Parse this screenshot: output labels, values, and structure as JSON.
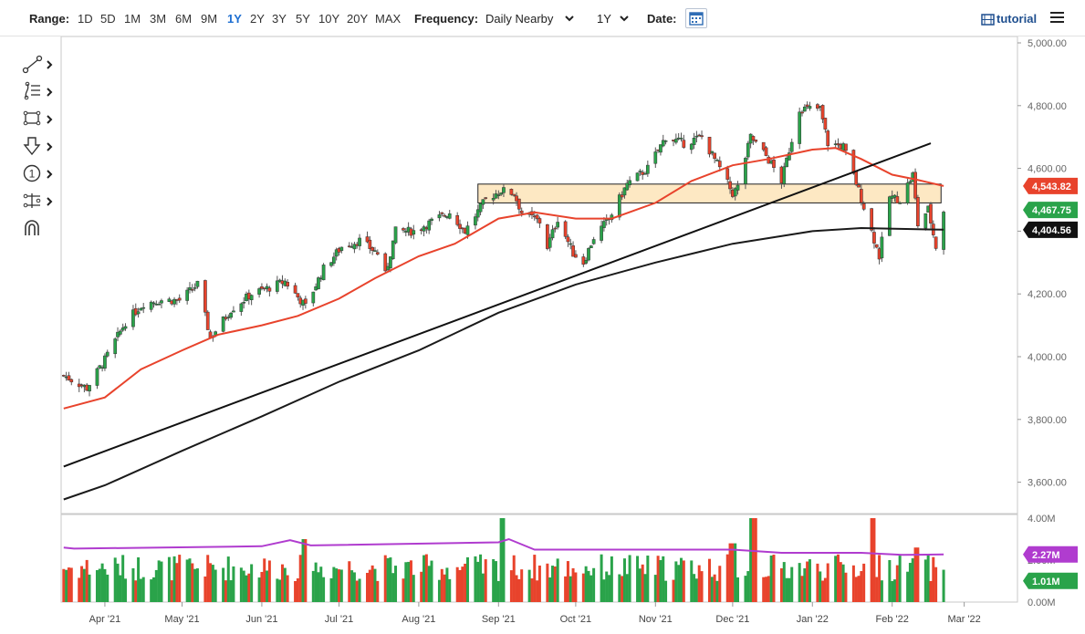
{
  "toolbar": {
    "range_label": "Range:",
    "ranges": [
      "1D",
      "5D",
      "1M",
      "3M",
      "6M",
      "9M",
      "1Y",
      "2Y",
      "3Y",
      "5Y",
      "10Y",
      "20Y",
      "MAX"
    ],
    "active_range": "1Y",
    "frequency_label": "Frequency:",
    "frequency_value": "Daily Nearby",
    "period_value": "1Y",
    "date_label": "Date:",
    "tutorial_label": "tutorial"
  },
  "tools": [
    {
      "icon": "trendline-icon"
    },
    {
      "icon": "fibonacci-icon"
    },
    {
      "icon": "rectangle-shape-icon"
    },
    {
      "icon": "arrow-down-icon"
    },
    {
      "icon": "numbered-marker-icon",
      "text": "1"
    },
    {
      "icon": "measure-icon"
    },
    {
      "icon": "magnet-icon"
    }
  ],
  "chart_data": [
    {
      "type": "candlestick",
      "panel": "price",
      "ylim": [
        3500,
        5000
      ],
      "y_ticks": [
        "5,000.00",
        "4,800.00",
        "4,600.00",
        "4,400.00",
        "4,200.00",
        "4,000.00",
        "3,800.00",
        "3,600.00"
      ],
      "y_tick_values": [
        5000,
        4800,
        4600,
        4400,
        4200,
        4000,
        3800,
        3600
      ],
      "x_ticks": [
        "Apr '21",
        "May '21",
        "Jun '21",
        "Jul '21",
        "Aug '21",
        "Sep '21",
        "Oct '21",
        "Nov '21",
        "Dec '21",
        "Jan '22",
        "Feb '22",
        "Mar '22"
      ],
      "x_tick_dates": [
        "2021-04-01",
        "2021-05-01",
        "2021-06-01",
        "2021-07-01",
        "2021-08-01",
        "2021-09-01",
        "2021-10-01",
        "2021-11-01",
        "2021-12-01",
        "2022-01-01",
        "2022-02-01",
        "2022-03-01"
      ],
      "date_range": [
        "2021-03-15",
        "2022-03-10"
      ],
      "close_path": [
        [
          "2021-03-16",
          3940
        ],
        [
          "2021-03-25",
          3900
        ],
        [
          "2021-04-01",
          3990
        ],
        [
          "2021-04-09",
          4110
        ],
        [
          "2021-04-16",
          4170
        ],
        [
          "2021-04-23",
          4180
        ],
        [
          "2021-04-30",
          4180
        ],
        [
          "2021-05-07",
          4230
        ],
        [
          "2021-05-12",
          4060
        ],
        [
          "2021-05-20",
          4150
        ],
        [
          "2021-05-28",
          4200
        ],
        [
          "2021-06-04",
          4220
        ],
        [
          "2021-06-10",
          4240
        ],
        [
          "2021-06-18",
          4160
        ],
        [
          "2021-06-25",
          4280
        ],
        [
          "2021-07-02",
          4350
        ],
        [
          "2021-07-09",
          4370
        ],
        [
          "2021-07-16",
          4330
        ],
        [
          "2021-07-19",
          4260
        ],
        [
          "2021-07-23",
          4400
        ],
        [
          "2021-07-30",
          4400
        ],
        [
          "2021-08-06",
          4430
        ],
        [
          "2021-08-13",
          4460
        ],
        [
          "2021-08-19",
          4400
        ],
        [
          "2021-08-27",
          4500
        ],
        [
          "2021-09-02",
          4530
        ],
        [
          "2021-09-07",
          4520
        ],
        [
          "2021-09-10",
          4460
        ],
        [
          "2021-09-17",
          4430
        ],
        [
          "2021-09-20",
          4350
        ],
        [
          "2021-09-24",
          4440
        ],
        [
          "2021-09-30",
          4330
        ],
        [
          "2021-10-04",
          4300
        ],
        [
          "2021-10-08",
          4380
        ],
        [
          "2021-10-14",
          4440
        ],
        [
          "2021-10-21",
          4550
        ],
        [
          "2021-10-29",
          4600
        ],
        [
          "2021-11-05",
          4700
        ],
        [
          "2021-11-12",
          4680
        ],
        [
          "2021-11-19",
          4700
        ],
        [
          "2021-11-26",
          4600
        ],
        [
          "2021-12-01",
          4520
        ],
        [
          "2021-12-03",
          4540
        ],
        [
          "2021-12-08",
          4700
        ],
        [
          "2021-12-14",
          4640
        ],
        [
          "2021-12-20",
          4560
        ],
        [
          "2021-12-27",
          4790
        ],
        [
          "2022-01-04",
          4790
        ],
        [
          "2022-01-07",
          4680
        ],
        [
          "2022-01-13",
          4670
        ],
        [
          "2022-01-19",
          4530
        ],
        [
          "2022-01-24",
          4400
        ],
        [
          "2022-01-27",
          4320
        ],
        [
          "2022-01-31",
          4510
        ],
        [
          "2022-02-04",
          4500
        ],
        [
          "2022-02-09",
          4580
        ],
        [
          "2022-02-11",
          4420
        ],
        [
          "2022-02-15",
          4470
        ],
        [
          "2022-02-18",
          4350
        ],
        [
          "2022-02-21",
          4467.75
        ]
      ],
      "series": [
        {
          "name": "",
          "kind": "moving-average-50",
          "color": "#e8432c",
          "points": [
            [
              "2021-03-16",
              3835
            ],
            [
              "2021-04-01",
              3870
            ],
            [
              "2021-04-15",
              3960
            ],
            [
              "2021-05-01",
              4020
            ],
            [
              "2021-05-15",
              4070
            ],
            [
              "2021-06-01",
              4100
            ],
            [
              "2021-06-15",
              4130
            ],
            [
              "2021-07-01",
              4185
            ],
            [
              "2021-07-15",
              4250
            ],
            [
              "2021-08-01",
              4320
            ],
            [
              "2021-08-15",
              4360
            ],
            [
              "2021-09-01",
              4440
            ],
            [
              "2021-09-15",
              4460
            ],
            [
              "2021-10-01",
              4440
            ],
            [
              "2021-10-15",
              4440
            ],
            [
              "2021-11-01",
              4490
            ],
            [
              "2021-11-15",
              4560
            ],
            [
              "2021-12-01",
              4610
            ],
            [
              "2021-12-15",
              4630
            ],
            [
              "2022-01-01",
              4660
            ],
            [
              "2022-01-10",
              4665
            ],
            [
              "2022-01-20",
              4630
            ],
            [
              "2022-02-01",
              4580
            ],
            [
              "2022-02-10",
              4565
            ],
            [
              "2022-02-21",
              4543.82
            ]
          ]
        },
        {
          "name": "",
          "kind": "moving-average-200",
          "color": "#1a1a1a",
          "points": [
            [
              "2021-03-16",
              3545
            ],
            [
              "2021-04-01",
              3590
            ],
            [
              "2021-05-01",
              3700
            ],
            [
              "2021-06-01",
              3810
            ],
            [
              "2021-07-01",
              3920
            ],
            [
              "2021-08-01",
              4020
            ],
            [
              "2021-09-01",
              4140
            ],
            [
              "2021-10-01",
              4230
            ],
            [
              "2021-11-01",
              4300
            ],
            [
              "2021-12-01",
              4360
            ],
            [
              "2022-01-01",
              4400
            ],
            [
              "2022-01-20",
              4410
            ],
            [
              "2022-02-21",
              4404.56
            ]
          ]
        },
        {
          "name": "",
          "kind": "trendline",
          "color": "#111111",
          "points": [
            [
              "2021-03-16",
              3650
            ],
            [
              "2022-02-16",
              4680
            ]
          ]
        }
      ],
      "zone": {
        "from_date": "2021-08-24",
        "to_date": "2022-02-20",
        "low": 4490,
        "high": 4550,
        "color": "#fde8c3"
      },
      "price_labels": [
        {
          "value": "4,543.82",
          "bg": "#e8432c"
        },
        {
          "value": "4,467.75",
          "bg": "#2aa34a"
        },
        {
          "value": "4,404.56",
          "bg": "#111111"
        }
      ],
      "up_color": "#2aa34a",
      "down_color": "#e8432c"
    },
    {
      "type": "bar",
      "panel": "volume",
      "ylim": [
        0,
        4.0
      ],
      "unit": "M",
      "y_ticks": [
        "4.00M",
        "2.00M",
        "0.00M"
      ],
      "y_tick_values": [
        4.0,
        2.0,
        0.0
      ],
      "volume_ma": [
        [
          "2021-03-16",
          2.6
        ],
        [
          "2021-03-20",
          2.55
        ],
        [
          "2021-06-01",
          2.66
        ],
        [
          "2021-06-12",
          2.95
        ],
        [
          "2021-06-20",
          2.7
        ],
        [
          "2021-09-01",
          2.85
        ],
        [
          "2021-09-05",
          3.0
        ],
        [
          "2021-09-15",
          2.5
        ],
        [
          "2021-12-01",
          2.5
        ],
        [
          "2021-12-20",
          2.35
        ],
        [
          "2022-01-20",
          2.35
        ],
        [
          "2022-02-05",
          2.25
        ],
        [
          "2022-02-21",
          2.27
        ]
      ],
      "ma_color": "#b03ccf",
      "spikes": [
        [
          "2021-06-18",
          3.0
        ],
        [
          "2021-09-03",
          4.0
        ],
        [
          "2021-12-01",
          2.8
        ],
        [
          "2021-12-09",
          4.0
        ],
        [
          "2022-01-24",
          4.0
        ],
        [
          "2022-02-11",
          2.6
        ]
      ],
      "price_labels": [
        {
          "value": "2.27M",
          "bg": "#b03ccf"
        },
        {
          "value": "1.01M",
          "bg": "#2aa34a"
        }
      ]
    }
  ]
}
